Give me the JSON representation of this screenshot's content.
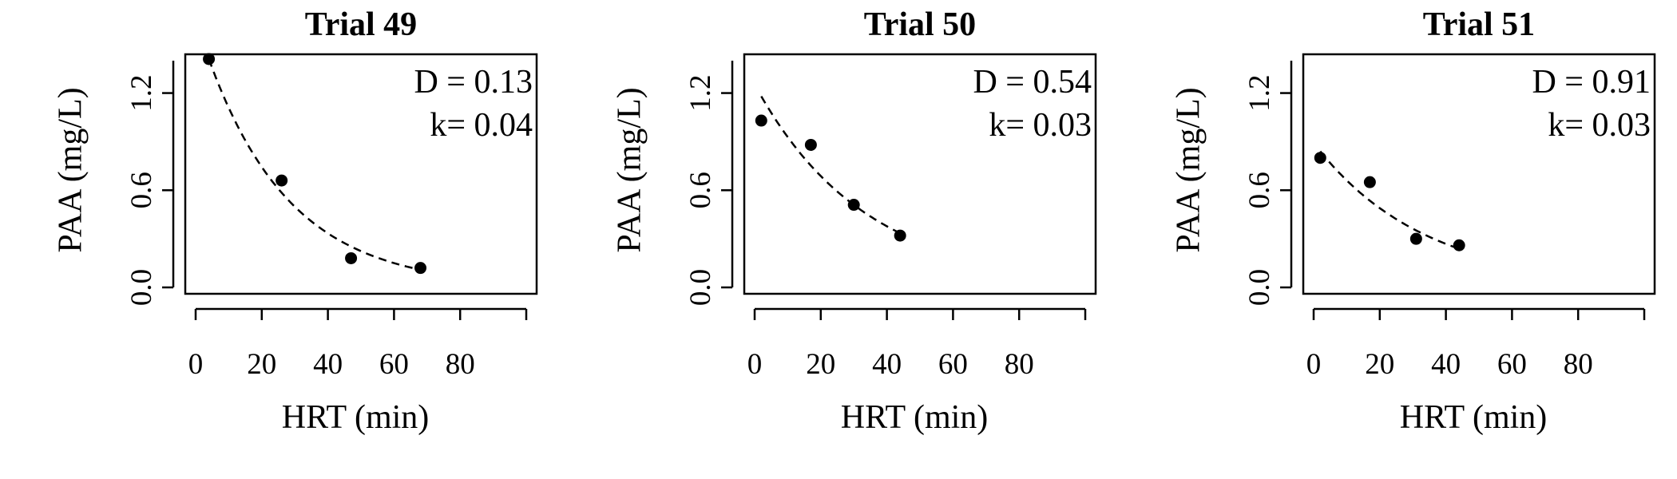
{
  "chart_data": [
    {
      "type": "scatter",
      "title": "Trial 49",
      "xlabel": "HRT (min)",
      "ylabel": "PAA (mg/L)",
      "xlim": [
        0,
        100
      ],
      "ylim": [
        0,
        1.4
      ],
      "xticks": [
        0,
        20,
        40,
        60,
        80
      ],
      "xtick_labels": [
        "0",
        "20",
        "40",
        "60",
        "80"
      ],
      "yticks": [
        0.0,
        0.6,
        1.2
      ],
      "ytick_labels": [
        "0.0",
        "0.6",
        "1.2"
      ],
      "points": [
        {
          "x": 4,
          "y": 1.41
        },
        {
          "x": 26,
          "y": 0.66
        },
        {
          "x": 47,
          "y": 0.18
        },
        {
          "x": 68,
          "y": 0.12
        }
      ],
      "fit": {
        "D": 0.13,
        "k": 0.04,
        "C0": 1.41,
        "x_range": [
          4,
          68
        ],
        "style": "dashed"
      },
      "annotations": [
        "D = 0.13",
        "k= 0.04"
      ],
      "grid": false
    },
    {
      "type": "scatter",
      "title": "Trial 50",
      "xlabel": "HRT (min)",
      "ylabel": "PAA (mg/L)",
      "xlim": [
        0,
        100
      ],
      "ylim": [
        0,
        1.4
      ],
      "xticks": [
        0,
        20,
        40,
        60,
        80
      ],
      "xtick_labels": [
        "0",
        "20",
        "40",
        "60",
        "80"
      ],
      "yticks": [
        0.0,
        0.6,
        1.2
      ],
      "ytick_labels": [
        "0.0",
        "0.6",
        "1.2"
      ],
      "points": [
        {
          "x": 2,
          "y": 1.03
        },
        {
          "x": 17,
          "y": 0.88
        },
        {
          "x": 30,
          "y": 0.51
        },
        {
          "x": 44,
          "y": 0.32
        }
      ],
      "fit": {
        "D": 0.54,
        "k": 0.03,
        "C0": 1.18,
        "x_range": [
          2,
          44
        ],
        "style": "dashed"
      },
      "annotations": [
        "D = 0.54",
        "k= 0.03"
      ],
      "grid": false
    },
    {
      "type": "scatter",
      "title": "Trial 51",
      "xlabel": "HRT (min)",
      "ylabel": "PAA (mg/L)",
      "xlim": [
        0,
        100
      ],
      "ylim": [
        0,
        1.4
      ],
      "xticks": [
        0,
        20,
        40,
        60,
        80
      ],
      "xtick_labels": [
        "0",
        "20",
        "40",
        "60",
        "80"
      ],
      "yticks": [
        0.0,
        0.6,
        1.2
      ],
      "ytick_labels": [
        "0.0",
        "0.6",
        "1.2"
      ],
      "points": [
        {
          "x": 2,
          "y": 0.8
        },
        {
          "x": 17,
          "y": 0.65
        },
        {
          "x": 31,
          "y": 0.3
        },
        {
          "x": 44,
          "y": 0.26
        }
      ],
      "fit": {
        "D": 0.91,
        "k": 0.03,
        "C0": 0.84,
        "x_range": [
          2,
          44
        ],
        "style": "dashed"
      },
      "annotations": [
        "D = 0.91",
        "k= 0.03"
      ],
      "grid": false
    }
  ]
}
